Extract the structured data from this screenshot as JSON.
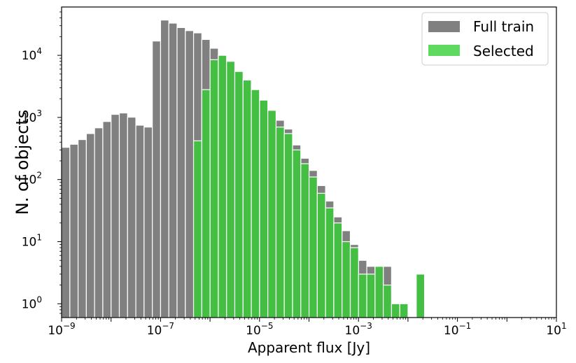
{
  "chart_data": {
    "type": "bar",
    "title": "",
    "xlabel": "Apparent flux [Jy]",
    "ylabel": "N. of objects",
    "xscale": "log",
    "yscale": "log",
    "xlim": [
      1e-09,
      10
    ],
    "ylim": [
      0.6,
      60000
    ],
    "grid": false,
    "legend_position": "top-right",
    "x_tick_labels": [
      {
        "base": "10",
        "exp": "−9"
      },
      {
        "base": "10",
        "exp": "−7"
      },
      {
        "base": "10",
        "exp": "−5"
      },
      {
        "base": "10",
        "exp": "−3"
      },
      {
        "base": "10",
        "exp": "−1"
      },
      {
        "base": "10",
        "exp": "1"
      }
    ],
    "y_tick_labels": [
      {
        "base": "10",
        "exp": "0"
      },
      {
        "base": "10",
        "exp": "1"
      },
      {
        "base": "10",
        "exp": "2"
      },
      {
        "base": "10",
        "exp": "3"
      },
      {
        "base": "10",
        "exp": "4"
      }
    ],
    "bin_width_dex": 0.1667,
    "bin_start_log10": -9.0,
    "series": [
      {
        "name": "Full train",
        "color": "#808080",
        "values": [
          330,
          370,
          440,
          550,
          680,
          860,
          1120,
          1180,
          1010,
          750,
          700,
          17000,
          37000,
          33000,
          28000,
          25000,
          23000,
          18000,
          13000,
          10000,
          8000,
          5500,
          4000,
          2800,
          1900,
          1300,
          900,
          650,
          360,
          220,
          140,
          80,
          45,
          25,
          15,
          9,
          5,
          4,
          4,
          4,
          0,
          0,
          0,
          3,
          0,
          0,
          0,
          0,
          0,
          0,
          0,
          0,
          0,
          0,
          0,
          0,
          0,
          0,
          0,
          0
        ]
      },
      {
        "name": "Selected",
        "color": "#44bf44",
        "values": [
          0,
          0,
          0,
          0,
          0,
          0,
          0,
          0,
          0,
          0,
          0,
          0,
          0,
          0,
          0,
          0,
          420,
          2800,
          8500,
          10000,
          8000,
          5500,
          4000,
          2800,
          1900,
          1300,
          700,
          550,
          300,
          180,
          110,
          60,
          35,
          20,
          10,
          8,
          3,
          3,
          4,
          2,
          1,
          1,
          0,
          3,
          0,
          0,
          0,
          0,
          0,
          0,
          0,
          0,
          0,
          0,
          0,
          0,
          0,
          0,
          0,
          0
        ]
      }
    ],
    "legend": {
      "entries": [
        {
          "label": "Full train",
          "color": "#808080"
        },
        {
          "label": "Selected",
          "color": "#5fd95f"
        }
      ]
    }
  }
}
